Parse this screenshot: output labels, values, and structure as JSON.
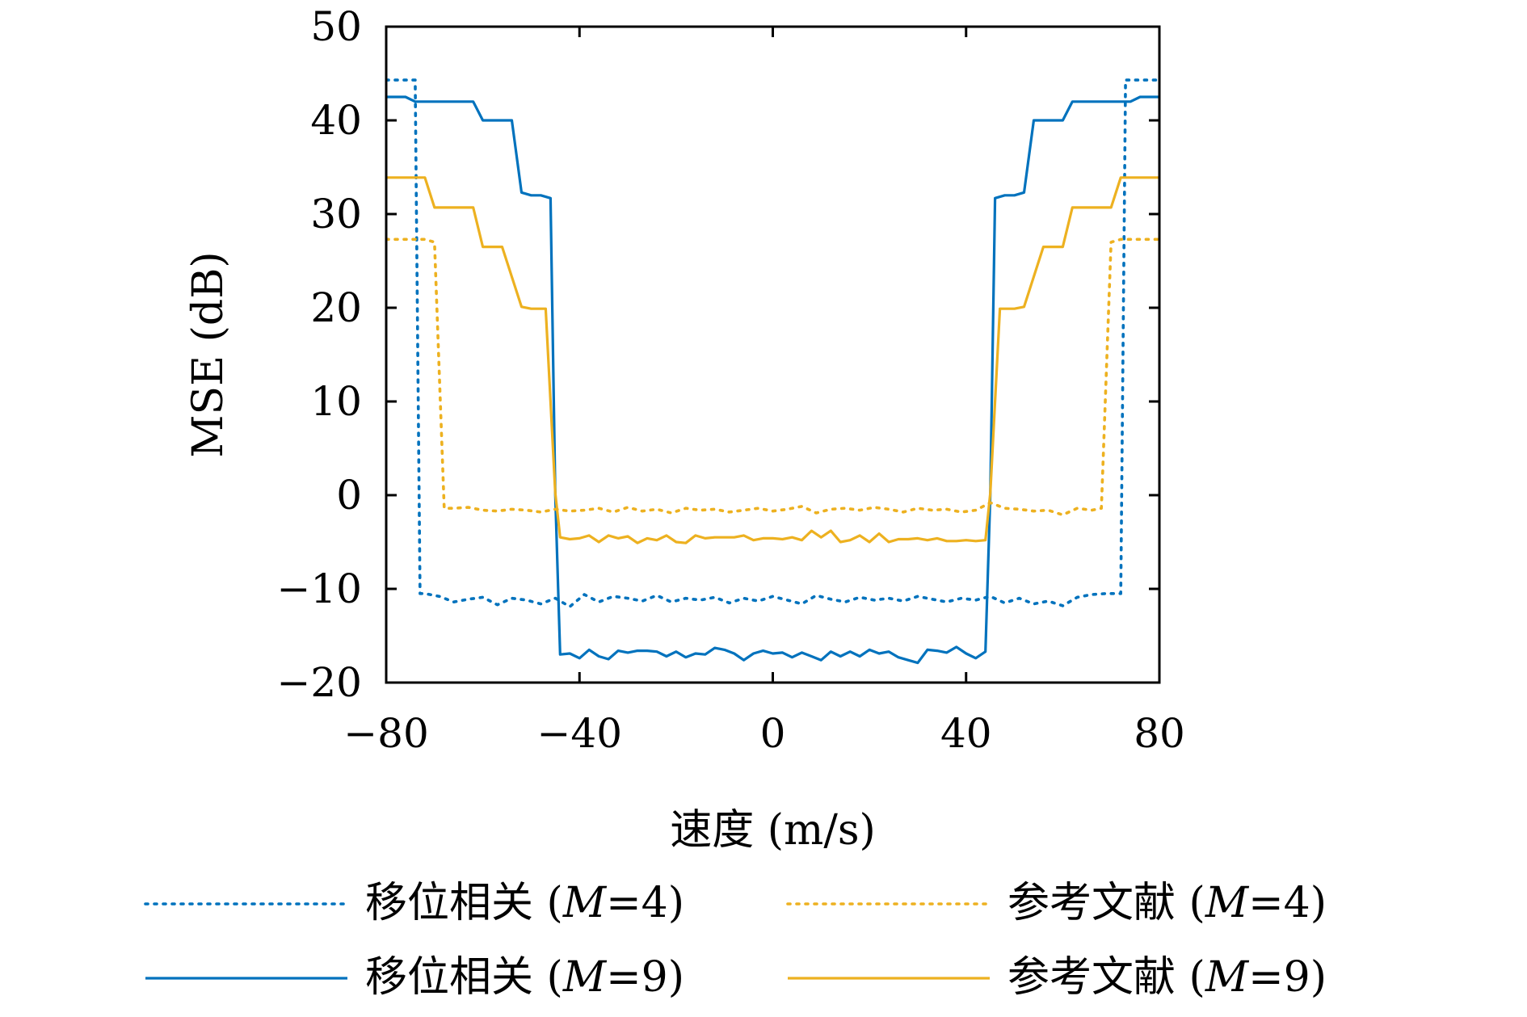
{
  "chart_data": {
    "type": "line",
    "title": "",
    "xlabel": "速度 (m/s)",
    "ylabel": "MSE (dB)",
    "xlim": [
      -80,
      80
    ],
    "ylim": [
      -20,
      50
    ],
    "xticks": [
      -80,
      -40,
      0,
      40,
      80
    ],
    "yticks": [
      -20,
      -10,
      0,
      10,
      20,
      30,
      40,
      50
    ],
    "xtick_labels": [
      "−80",
      "−40",
      "0",
      "40",
      "80"
    ],
    "ytick_labels": [
      "−20",
      "−10",
      "0",
      "10",
      "20",
      "30",
      "40",
      "50"
    ],
    "grid": false,
    "legend_position": "bottom",
    "series": [
      {
        "name": "移位相关 (M=4)",
        "legend_label": "移位相关 (",
        "legend_m": "M",
        "legend_rest": "=4)",
        "color": "#0072BD",
        "dash": "dotted",
        "x": [
          -80,
          -74,
          -73,
          -72,
          -69,
          -66,
          -63,
          -60,
          -57,
          -54,
          -51,
          -48,
          -45,
          -42,
          -39,
          -36,
          -33,
          -30,
          -27,
          -24,
          -21,
          -18,
          -15,
          -12,
          -9,
          -6,
          -3,
          0,
          3,
          6,
          9,
          12,
          15,
          18,
          21,
          24,
          27,
          30,
          33,
          36,
          39,
          42,
          45,
          48,
          51,
          54,
          57,
          60,
          63,
          66,
          69,
          72,
          73,
          74,
          80
        ],
        "y": [
          44.3,
          44.3,
          -10.5,
          -10.5,
          -10.8,
          -11.4,
          -11.1,
          -10.9,
          -11.7,
          -11.0,
          -11.2,
          -11.6,
          -11.0,
          -11.9,
          -10.6,
          -11.4,
          -10.8,
          -11.0,
          -11.3,
          -10.7,
          -11.4,
          -11.0,
          -11.2,
          -10.9,
          -11.5,
          -11.0,
          -11.3,
          -10.8,
          -11.2,
          -11.6,
          -10.7,
          -11.1,
          -11.4,
          -10.9,
          -11.2,
          -11.0,
          -11.3,
          -10.8,
          -11.1,
          -11.4,
          -11.0,
          -11.2,
          -10.8,
          -11.5,
          -11.0,
          -11.6,
          -11.3,
          -11.8,
          -10.9,
          -10.6,
          -10.5,
          -10.5,
          44.3,
          44.3,
          44.3
        ]
      },
      {
        "name": "移位相关 (M=9)",
        "legend_label": "移位相关 (",
        "legend_m": "M",
        "legend_rest": "=9)",
        "color": "#0072BD",
        "dash": "solid",
        "x": [
          -80,
          -76,
          -74,
          -70,
          -62,
          -60,
          -54,
          -52,
          -50,
          -48,
          -46,
          -45,
          -44,
          -42,
          -40,
          -38,
          -36,
          -34,
          -32,
          -30,
          -28,
          -26,
          -24,
          -22,
          -20,
          -18,
          -16,
          -14,
          -12,
          -10,
          -8,
          -6,
          -4,
          -2,
          0,
          2,
          4,
          6,
          8,
          10,
          12,
          14,
          16,
          18,
          20,
          22,
          24,
          26,
          28,
          30,
          32,
          34,
          36,
          38,
          40,
          42,
          44,
          45,
          46,
          48,
          50,
          52,
          54,
          60,
          62,
          70,
          74,
          76,
          80
        ],
        "y": [
          42.5,
          42.5,
          42.0,
          42.0,
          42.0,
          40.0,
          40.0,
          32.3,
          32.0,
          32.0,
          31.7,
          0.0,
          -17.0,
          -16.9,
          -17.4,
          -16.5,
          -17.2,
          -17.5,
          -16.6,
          -16.8,
          -16.6,
          -16.6,
          -16.7,
          -17.2,
          -16.7,
          -17.3,
          -16.9,
          -17.0,
          -16.3,
          -16.5,
          -16.9,
          -17.6,
          -16.9,
          -16.6,
          -16.9,
          -16.8,
          -17.3,
          -16.8,
          -17.2,
          -17.6,
          -16.7,
          -17.2,
          -16.7,
          -17.2,
          -16.5,
          -16.9,
          -16.7,
          -17.3,
          -17.6,
          -17.9,
          -16.5,
          -16.6,
          -16.8,
          -16.2,
          -16.9,
          -17.4,
          -16.7,
          0.0,
          31.7,
          32.0,
          32.0,
          32.3,
          40.0,
          40.0,
          42.0,
          42.0,
          42.0,
          42.5,
          42.5
        ]
      },
      {
        "name": "参考文献 (M=4)",
        "legend_label": "参考文献 (",
        "legend_m": "M",
        "legend_rest": "=4)",
        "color": "#EDB120",
        "dash": "dotted",
        "x": [
          -80,
          -72,
          -70,
          -68,
          -66,
          -63,
          -60,
          -57,
          -54,
          -51,
          -48,
          -45,
          -42,
          -39,
          -36,
          -33,
          -30,
          -27,
          -24,
          -21,
          -18,
          -15,
          -12,
          -9,
          -6,
          -3,
          0,
          3,
          6,
          9,
          12,
          15,
          18,
          21,
          24,
          27,
          30,
          33,
          36,
          39,
          42,
          45,
          48,
          51,
          54,
          57,
          60,
          63,
          66,
          68,
          70,
          72,
          80
        ],
        "y": [
          27.3,
          27.3,
          27.0,
          -1.4,
          -1.4,
          -1.3,
          -1.6,
          -1.7,
          -1.5,
          -1.6,
          -1.8,
          -1.5,
          -1.7,
          -1.6,
          -1.4,
          -1.8,
          -1.3,
          -1.7,
          -1.5,
          -1.9,
          -1.4,
          -1.6,
          -1.5,
          -1.8,
          -1.6,
          -1.4,
          -1.7,
          -1.5,
          -1.2,
          -1.9,
          -1.5,
          -1.4,
          -1.6,
          -1.3,
          -1.5,
          -1.8,
          -1.4,
          -1.6,
          -1.5,
          -1.8,
          -1.6,
          -0.8,
          -1.4,
          -1.5,
          -1.7,
          -1.6,
          -2.1,
          -1.4,
          -1.6,
          -1.4,
          27.0,
          27.3,
          27.3
        ]
      },
      {
        "name": "参考文献 (M=9)",
        "legend_label": "参考文献 (",
        "legend_m": "M",
        "legend_rest": "=9)",
        "color": "#EDB120",
        "dash": "solid",
        "x": [
          -80,
          -72,
          -70,
          -66,
          -62,
          -60,
          -56,
          -52,
          -50,
          -47,
          -46,
          -45,
          -44,
          -42,
          -40,
          -38,
          -36,
          -34,
          -32,
          -30,
          -28,
          -26,
          -24,
          -22,
          -20,
          -18,
          -16,
          -14,
          -12,
          -10,
          -8,
          -6,
          -4,
          -2,
          0,
          2,
          4,
          6,
          8,
          10,
          12,
          14,
          16,
          18,
          20,
          22,
          24,
          26,
          28,
          30,
          32,
          34,
          36,
          38,
          40,
          42,
          44,
          45,
          46,
          47,
          50,
          52,
          56,
          60,
          62,
          66,
          70,
          72,
          80
        ],
        "y": [
          33.9,
          33.9,
          30.7,
          30.7,
          30.7,
          26.5,
          26.5,
          20.1,
          19.9,
          19.9,
          10.0,
          0.2,
          -4.5,
          -4.7,
          -4.6,
          -4.3,
          -5.0,
          -4.3,
          -4.6,
          -4.4,
          -5.1,
          -4.6,
          -4.8,
          -4.3,
          -5.0,
          -5.1,
          -4.3,
          -4.6,
          -4.5,
          -4.5,
          -4.5,
          -4.3,
          -4.8,
          -4.6,
          -4.6,
          -4.7,
          -4.5,
          -4.8,
          -3.8,
          -4.5,
          -3.8,
          -5.0,
          -4.8,
          -4.3,
          -5.0,
          -4.1,
          -5.0,
          -4.7,
          -4.7,
          -4.6,
          -4.8,
          -4.6,
          -4.9,
          -4.9,
          -4.8,
          -4.9,
          -4.8,
          0.2,
          10.0,
          19.9,
          19.9,
          20.1,
          26.5,
          26.5,
          30.7,
          30.7,
          30.7,
          33.9,
          33.9
        ]
      }
    ]
  }
}
